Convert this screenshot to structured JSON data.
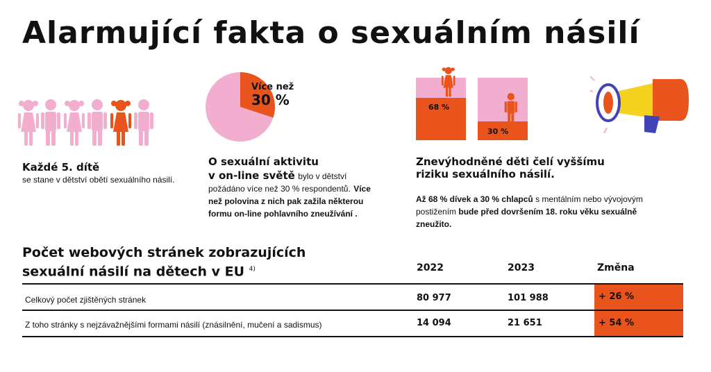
{
  "title": "Alarmující fakta o sexuálním násilí",
  "colors": {
    "orange": "#e8541c",
    "pink": "#f2aecf",
    "blue": "#4343b8",
    "yellow": "#f4d21e"
  },
  "block1": {
    "head": "Každé 5. dítě",
    "text": "se stane v dětství obětí sexuálního násilí."
  },
  "block2": {
    "pie_label_1": "Více než",
    "pie_label_2": "30 %",
    "pie_share_percent": 30,
    "head_1": "O sexuální aktivitu",
    "head_2": "v on-line světě",
    "text_1": "bylo v dětství požádáno více než 30 % respondentů.",
    "text_2": "Více než polovina z nich pak zažila některou formu on-line pohlavního zneužívání ."
  },
  "block3": {
    "girls_label": "68 %",
    "girls_percent": 68,
    "boys_label": "30 %",
    "boys_percent": 30,
    "head": "Znevýhodněné děti čelí vyššímu riziku sexuálního násilí.",
    "text_1": "Až 68 % dívek a 30 % chlapců",
    "text_2": "s mentálním nebo vývojovým postižením",
    "text_3": "bude před dovršením 18. roku věku sexuálně zneužito."
  },
  "table": {
    "title_1": "Počet webových stránek zobrazujících",
    "title_2": "sexuální násilí na dětech v EU",
    "footnote": "4)",
    "col_2022": "2022",
    "col_2023": "2023",
    "col_change": "Změna",
    "rows": [
      {
        "label": "Celkový počet zjištěných stránek",
        "v2022": "80 977",
        "v2023": "101 988",
        "change": "+ 26 %"
      },
      {
        "label": "Z toho stránky s nejzávažnějšími formami násilí (znásilnění, mučení a sadismus)",
        "v2022": "14 094",
        "v2023": "21 651",
        "change": "+ 54 %"
      }
    ]
  }
}
